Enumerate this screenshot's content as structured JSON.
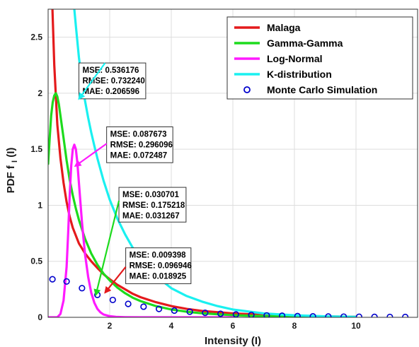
{
  "chart_data": {
    "type": "line",
    "title": "",
    "xlabel": "Intensity (I)",
    "ylabel": "PDF f",
    "ylabel_sub": "I",
    "ylabel_tail": "(I)",
    "xlim": [
      0,
      12
    ],
    "ylim": [
      0,
      2.75
    ],
    "xticks": [
      2,
      4,
      6,
      8,
      10
    ],
    "yticks": [
      0,
      0.5,
      1,
      1.5,
      2,
      2.5
    ],
    "xtick_labels": [
      "2",
      "4",
      "6",
      "8",
      "10"
    ],
    "ytick_labels": [
      "0",
      "0.5",
      "1",
      "1.5",
      "2",
      "2.5"
    ],
    "grid": true,
    "legend_placement": "top-right",
    "series": [
      {
        "name": "Malaga",
        "style": "line",
        "color": "#e41a1c",
        "x": [
          0.14,
          0.2,
          0.3,
          0.4,
          0.5,
          0.6,
          0.7,
          0.8,
          1.0,
          1.2,
          1.4,
          1.6,
          1.8,
          2.0,
          2.25,
          2.5,
          2.75,
          3.0,
          3.5,
          4.0,
          4.5,
          5.0,
          6.0,
          7.0,
          8.0,
          9.0,
          10.0
        ],
        "y": [
          2.75,
          2.25,
          1.72,
          1.42,
          1.2,
          1.03,
          0.9,
          0.8,
          0.66,
          0.57,
          0.5,
          0.44,
          0.385,
          0.34,
          0.29,
          0.25,
          0.21,
          0.18,
          0.135,
          0.1,
          0.075,
          0.057,
          0.035,
          0.022,
          0.014,
          0.008,
          0.005
        ]
      },
      {
        "name": "Gamma-Gamma",
        "style": "line",
        "color": "#1ddb1d",
        "x": [
          0.0,
          0.05,
          0.1,
          0.15,
          0.2,
          0.25,
          0.3,
          0.35,
          0.4,
          0.5,
          0.6,
          0.7,
          0.8,
          0.9,
          1.0,
          1.2,
          1.4,
          1.6,
          1.8,
          2.0,
          2.25,
          2.5,
          2.75,
          3.0,
          3.5,
          4.0,
          4.5,
          5.0,
          6.0,
          7.0,
          8.0,
          9.0,
          10.0
        ],
        "y": [
          1.37,
          1.6,
          1.8,
          1.92,
          1.98,
          2.0,
          1.97,
          1.9,
          1.8,
          1.6,
          1.4,
          1.23,
          1.09,
          0.97,
          0.87,
          0.7,
          0.57,
          0.47,
          0.39,
          0.33,
          0.265,
          0.215,
          0.175,
          0.145,
          0.1,
          0.07,
          0.05,
          0.036,
          0.019,
          0.01,
          0.006,
          0.004,
          0.002
        ]
      },
      {
        "name": "Log-Normal",
        "style": "line",
        "color": "#ff1aff",
        "x": [
          0.0,
          0.3,
          0.4,
          0.5,
          0.6,
          0.65,
          0.7,
          0.75,
          0.8,
          0.85,
          0.9,
          0.95,
          1.0,
          1.05,
          1.1,
          1.15,
          1.2,
          1.3,
          1.4,
          1.5,
          1.6,
          1.7,
          1.8,
          2.0,
          2.2,
          2.5,
          3.0,
          4.0,
          6.0
        ],
        "y": [
          0.0,
          0.0,
          0.03,
          0.15,
          0.45,
          0.75,
          1.08,
          1.35,
          1.5,
          1.54,
          1.5,
          1.38,
          1.2,
          1.02,
          0.85,
          0.7,
          0.56,
          0.36,
          0.22,
          0.13,
          0.075,
          0.045,
          0.025,
          0.01,
          0.004,
          0.001,
          0.0,
          0.0,
          0.0
        ]
      },
      {
        "name": "K-distribution",
        "style": "line",
        "color": "#1af0f0",
        "x": [
          0.85,
          0.9,
          1.0,
          1.1,
          1.2,
          1.3,
          1.4,
          1.5,
          1.6,
          1.8,
          2.0,
          2.25,
          2.5,
          2.75,
          3.0,
          3.25,
          3.5,
          4.0,
          4.5,
          5.0,
          5.5,
          6.0,
          7.0,
          8.0,
          9.0,
          10.0
        ],
        "y": [
          2.75,
          2.6,
          2.32,
          2.1,
          1.93,
          1.78,
          1.65,
          1.53,
          1.42,
          1.22,
          1.05,
          0.88,
          0.74,
          0.62,
          0.52,
          0.44,
          0.37,
          0.26,
          0.19,
          0.14,
          0.1,
          0.07,
          0.035,
          0.018,
          0.009,
          0.004
        ]
      },
      {
        "name": "Monte Carlo Simulation",
        "style": "markers",
        "color": "#0000cc",
        "x": [
          0.14,
          0.6,
          1.1,
          1.6,
          2.1,
          2.6,
          3.1,
          3.6,
          4.1,
          4.6,
          5.1,
          5.6,
          6.1,
          6.6,
          7.1,
          7.6,
          8.1,
          8.6,
          9.1,
          9.6,
          10.1,
          10.6,
          11.1,
          11.6
        ],
        "y": [
          0.34,
          0.32,
          0.26,
          0.2,
          0.155,
          0.12,
          0.095,
          0.075,
          0.06,
          0.05,
          0.04,
          0.032,
          0.026,
          0.021,
          0.017,
          0.014,
          0.011,
          0.009,
          0.007,
          0.006,
          0.005,
          0.004,
          0.003,
          0.003
        ]
      }
    ],
    "annotations": [
      {
        "series": "K-distribution",
        "lines": [
          "MSE: 0.536176",
          "RMSE: 0.732240",
          "MAE: 0.206596"
        ],
        "box_x": 1.0,
        "box_y_top": 2.27,
        "box_x_end": 3.17,
        "box_y_bottom": 1.95,
        "arrow_from": [
          1.85,
          2.27
        ],
        "arrow_to": [
          1.0,
          1.95
        ]
      },
      {
        "series": "Log-Normal",
        "lines": [
          "MSE: 0.087673",
          "RMSE: 0.296096",
          "MAE: 0.072487"
        ],
        "box_x": 1.9,
        "box_y_top": 1.7,
        "box_x_end": 4.05,
        "box_y_bottom": 1.38,
        "arrow_from": [
          1.9,
          1.55
        ],
        "arrow_to": [
          0.88,
          1.35
        ]
      },
      {
        "series": "Gamma-Gamma",
        "lines": [
          "MSE: 0.030701",
          "RMSE: 0.175218",
          "MAE: 0.031267"
        ],
        "box_x": 2.3,
        "box_y_top": 1.16,
        "box_x_end": 4.48,
        "box_y_bottom": 0.85,
        "arrow_from": [
          2.3,
          1.04
        ],
        "arrow_to": [
          1.55,
          0.2
        ]
      },
      {
        "series": "Malaga",
        "lines": [
          "MSE: 0.009398",
          "RMSE: 0.096946",
          "MAE: 0.018925"
        ],
        "box_x": 2.52,
        "box_y_top": 0.62,
        "box_x_end": 4.64,
        "box_y_bottom": 0.3,
        "arrow_from": [
          2.52,
          0.45
        ],
        "arrow_to": [
          1.85,
          0.22
        ]
      }
    ],
    "colors": {
      "grid": "#dddddd",
      "axis": "#333333",
      "annotation_border": "#333333"
    }
  }
}
